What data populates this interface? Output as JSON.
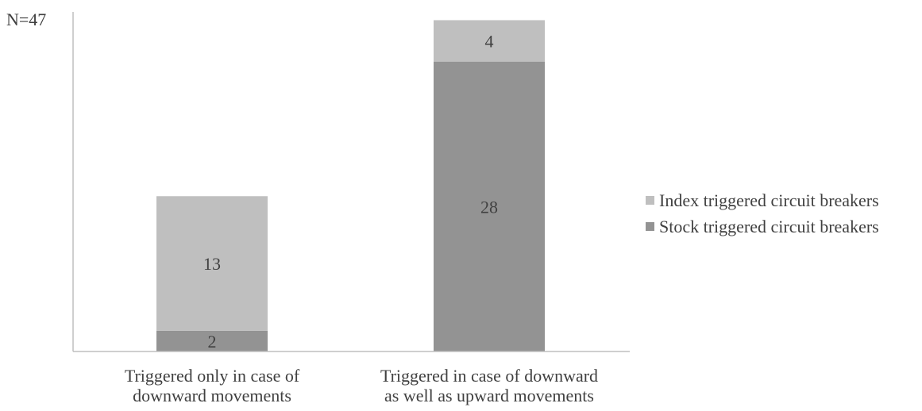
{
  "annotation": "N=47",
  "chart_data": {
    "type": "bar",
    "stacked": true,
    "categories": [
      [
        "Triggered only in case of",
        "downward movements"
      ],
      [
        "Triggered in case of downward",
        "as well as upward movements"
      ]
    ],
    "series": [
      {
        "name": "Stock triggered circuit breakers",
        "values": [
          2,
          28
        ],
        "color": "#939393"
      },
      {
        "name": "Index triggered circuit breakers",
        "values": [
          13,
          4
        ],
        "color": "#bfbfbf"
      }
    ],
    "ylim": [
      0,
      32.8
    ],
    "grid": false,
    "legend_position": "right"
  }
}
